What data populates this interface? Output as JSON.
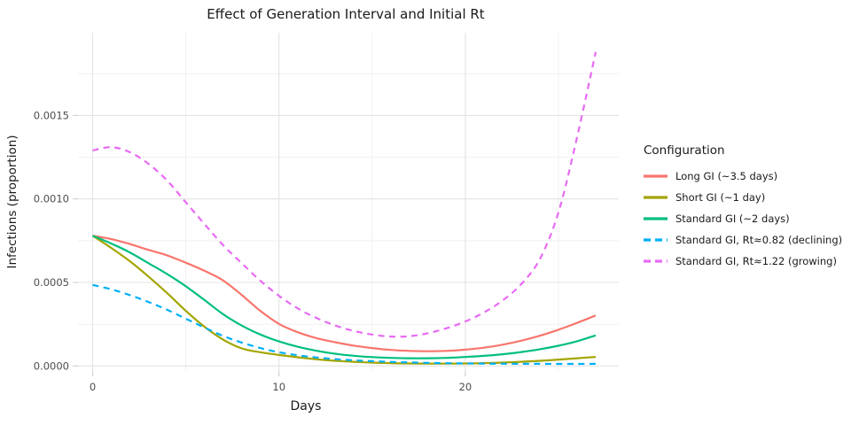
{
  "title": "Effect of Generation Interval and Initial Rt",
  "axes": {
    "x": {
      "label": "Days"
    },
    "y": {
      "label": "Infections (proportion)"
    }
  },
  "legend": {
    "title": "Configuration"
  },
  "colors": {
    "long_gi": "#F8766D",
    "short_gi": "#A3A500",
    "standard_gi": "#00BF7D",
    "declining": "#00B0F6",
    "growing": "#E76BF3",
    "grid_major": "#E3E3E3",
    "grid_minor": "#F1F1F1",
    "tick_text": "#4D4D4D"
  },
  "chart_data": {
    "type": "line",
    "title": "Effect of Generation Interval and Initial Rt",
    "xlabel": "Days",
    "ylabel": "Infections (proportion)",
    "xlim": [
      0,
      27
    ],
    "ylim": [
      0,
      0.0019
    ],
    "grid": true,
    "legend_position": "right",
    "x_axis": {
      "ticks": [
        {
          "v": 0,
          "label": "0"
        },
        {
          "v": 10,
          "label": "10"
        },
        {
          "v": 20,
          "label": "20"
        }
      ],
      "minor": [
        5,
        15,
        25
      ]
    },
    "y_axis": {
      "ticks": [
        {
          "v": 0,
          "label": "0.0000"
        },
        {
          "v": 0.0005,
          "label": "0.0005"
        },
        {
          "v": 0.001,
          "label": "0.0010"
        },
        {
          "v": 0.0015,
          "label": "0.0015"
        }
      ],
      "minor": [
        0.00025,
        0.00075,
        0.00125,
        0.00175
      ]
    },
    "x": [
      0,
      1,
      2,
      3,
      4,
      5,
      6,
      7,
      8,
      9,
      10,
      11,
      12,
      13,
      14,
      15,
      16,
      17,
      18,
      19,
      20,
      21,
      22,
      23,
      24,
      25,
      26,
      27
    ],
    "series": [
      {
        "id": "long-gi",
        "name": "Long GI (~3.5 days)",
        "color": "#F8766D",
        "dash": "solid",
        "values": [
          0.00078,
          0.00076,
          0.00073,
          0.000695,
          0.000662,
          0.000618,
          0.00057,
          0.000512,
          0.000425,
          0.00033,
          0.000252,
          0.000202,
          0.000167,
          0.000142,
          0.000122,
          0.000107,
          9.6e-05,
          9e-05,
          8.8e-05,
          9e-05,
          9.75e-05,
          0.000109,
          0.000127,
          0.000151,
          0.000181,
          0.000217,
          0.000258,
          0.000302
        ]
      },
      {
        "id": "short-gi",
        "name": "Short GI (~1 day)",
        "color": "#A3A500",
        "dash": "solid",
        "values": [
          0.00078,
          0.000707,
          0.000627,
          0.000535,
          0.000436,
          0.00033,
          0.000235,
          0.000158,
          0.000105,
          8.2e-05,
          6.6e-05,
          5.2e-05,
          4e-05,
          3.1e-05,
          2.5e-05,
          2e-05,
          1.7e-05,
          1.5e-05,
          1.4e-05,
          1.4e-05,
          1.5e-05,
          1.7e-05,
          2e-05,
          2.48e-05,
          3.08e-05,
          3.8e-05,
          4.6e-05,
          5.4e-05
        ]
      },
      {
        "id": "standard-gi",
        "name": "Standard GI (~2 days)",
        "color": "#00BF7D",
        "dash": "solid",
        "values": [
          0.00078,
          0.000733,
          0.00068,
          0.000615,
          0.00055,
          0.000477,
          0.000395,
          0.00031,
          0.000242,
          0.000188,
          0.000147,
          0.000115,
          9.1e-05,
          7.3e-05,
          6.1e-05,
          5.3e-05,
          4.8e-05,
          4.6e-05,
          4.6e-05,
          4.85e-05,
          5.35e-05,
          6.05e-05,
          7e-05,
          8.3e-05,
          0.0001,
          0.000121,
          0.000148,
          0.000183
        ]
      },
      {
        "id": "declining",
        "name": "Standard GI, Rt≈0.82 (declining)",
        "color": "#00B0F6",
        "dash": "dashed",
        "values": [
          0.000485,
          0.000459,
          0.000424,
          0.000383,
          0.000336,
          0.000283,
          0.00023,
          0.00018,
          0.00014,
          0.000107,
          8.2e-05,
          6.4e-05,
          5.1e-05,
          4.1e-05,
          3.4e-05,
          2.85e-05,
          2.43e-05,
          2.1e-05,
          1.85e-05,
          1.65e-05,
          1.5e-05,
          1.4e-05,
          1.33e-05,
          1.28e-05,
          1.25e-05,
          1.23e-05,
          1.22e-05,
          1.25e-05
        ]
      },
      {
        "id": "growing",
        "name": "Standard GI, Rt≈1.22 (growing)",
        "color": "#E76BF3",
        "dash": "dashed",
        "values": [
          0.00129,
          0.00131,
          0.00128,
          0.00121,
          0.00111,
          0.00098,
          0.00085,
          0.000724,
          0.000615,
          0.00051,
          0.00042,
          0.000345,
          0.000288,
          0.000243,
          0.00021,
          0.000188,
          0.000176,
          0.000178,
          0.000196,
          0.000226,
          0.000266,
          0.00032,
          0.000392,
          0.00049,
          0.00064,
          0.00092,
          0.00137,
          0.00188
        ]
      }
    ]
  }
}
